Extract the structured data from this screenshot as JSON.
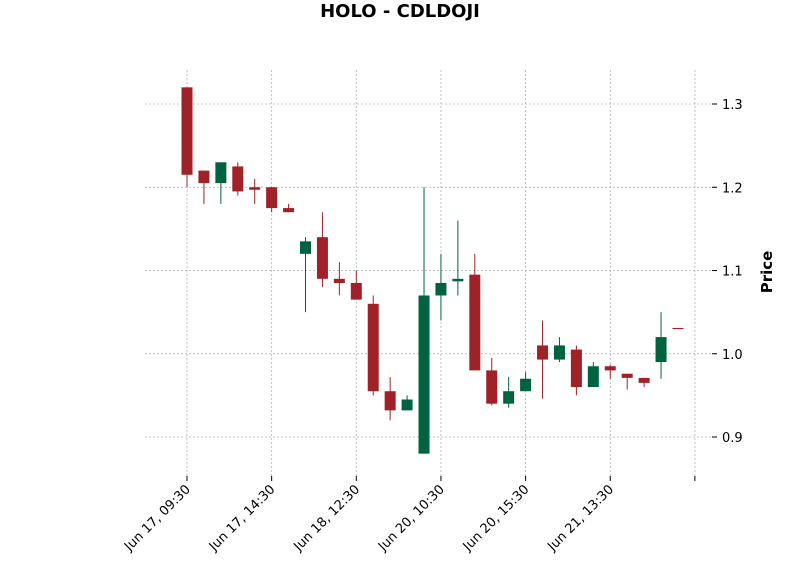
{
  "chart_data": {
    "type": "candlestick",
    "title": "HOLO - CDLDOJI",
    "ylabel": "Price",
    "ylim": [
      0.86,
      1.34
    ],
    "y_ticks": [
      0.9,
      1.0,
      1.1,
      1.2,
      1.3
    ],
    "y_tick_labels": [
      "0.9",
      "1.0",
      "1.1",
      "1.2",
      "1.3"
    ],
    "x_tick_labels": [
      {
        "index": 0,
        "label": "Jun 17, 09:30"
      },
      {
        "index": 5,
        "label": "Jun 17, 14:30"
      },
      {
        "index": 10,
        "label": "Jun 18, 12:30"
      },
      {
        "index": 15,
        "label": "Jun 20, 10:30"
      },
      {
        "index": 20,
        "label": "Jun 20, 15:30"
      },
      {
        "index": 25,
        "label": "Jun 21, 13:30"
      },
      {
        "index": 30,
        "label": ""
      }
    ],
    "grid": true,
    "up_color": "#006340",
    "down_color": "#a02128",
    "candles": [
      {
        "open": 1.32,
        "high": 1.32,
        "low": 1.2,
        "close": 1.215
      },
      {
        "open": 1.22,
        "high": 1.22,
        "low": 1.18,
        "close": 1.205
      },
      {
        "open": 1.205,
        "high": 1.23,
        "low": 1.18,
        "close": 1.23
      },
      {
        "open": 1.225,
        "high": 1.23,
        "low": 1.19,
        "close": 1.195
      },
      {
        "open": 1.2,
        "high": 1.21,
        "low": 1.18,
        "close": 1.197
      },
      {
        "open": 1.2,
        "high": 1.2,
        "low": 1.17,
        "close": 1.175
      },
      {
        "open": 1.175,
        "high": 1.18,
        "low": 1.17,
        "close": 1.17
      },
      {
        "open": 1.12,
        "high": 1.14,
        "low": 1.05,
        "close": 1.135
      },
      {
        "open": 1.14,
        "high": 1.17,
        "low": 1.08,
        "close": 1.09
      },
      {
        "open": 1.09,
        "high": 1.11,
        "low": 1.07,
        "close": 1.085
      },
      {
        "open": 1.085,
        "high": 1.1,
        "low": 1.065,
        "close": 1.065
      },
      {
        "open": 1.06,
        "high": 1.07,
        "low": 0.95,
        "close": 0.955
      },
      {
        "open": 0.955,
        "high": 0.972,
        "low": 0.92,
        "close": 0.932
      },
      {
        "open": 0.932,
        "high": 0.95,
        "low": 0.932,
        "close": 0.945
      },
      {
        "open": 0.88,
        "high": 1.2,
        "low": 0.88,
        "close": 1.07
      },
      {
        "open": 1.07,
        "high": 1.12,
        "low": 1.04,
        "close": 1.085
      },
      {
        "open": 1.087,
        "high": 1.16,
        "low": 1.07,
        "close": 1.09
      },
      {
        "open": 1.095,
        "high": 1.12,
        "low": 0.98,
        "close": 0.98
      },
      {
        "open": 0.98,
        "high": 0.995,
        "low": 0.938,
        "close": 0.94
      },
      {
        "open": 0.94,
        "high": 0.972,
        "low": 0.935,
        "close": 0.955
      },
      {
        "open": 0.955,
        "high": 0.978,
        "low": 0.955,
        "close": 0.97
      },
      {
        "open": 1.01,
        "high": 1.04,
        "low": 0.946,
        "close": 0.993
      },
      {
        "open": 0.993,
        "high": 1.02,
        "low": 0.99,
        "close": 1.01
      },
      {
        "open": 1.005,
        "high": 1.01,
        "low": 0.95,
        "close": 0.96
      },
      {
        "open": 0.96,
        "high": 0.99,
        "low": 0.96,
        "close": 0.985
      },
      {
        "open": 0.985,
        "high": 0.987,
        "low": 0.97,
        "close": 0.98
      },
      {
        "open": 0.976,
        "high": 0.976,
        "low": 0.957,
        "close": 0.971
      },
      {
        "open": 0.971,
        "high": 0.971,
        "low": 0.96,
        "close": 0.965
      },
      {
        "open": 0.99,
        "high": 1.05,
        "low": 0.97,
        "close": 1.02
      },
      {
        "open": 1.031,
        "high": 1.031,
        "low": 1.031,
        "close": 1.03
      }
    ]
  }
}
